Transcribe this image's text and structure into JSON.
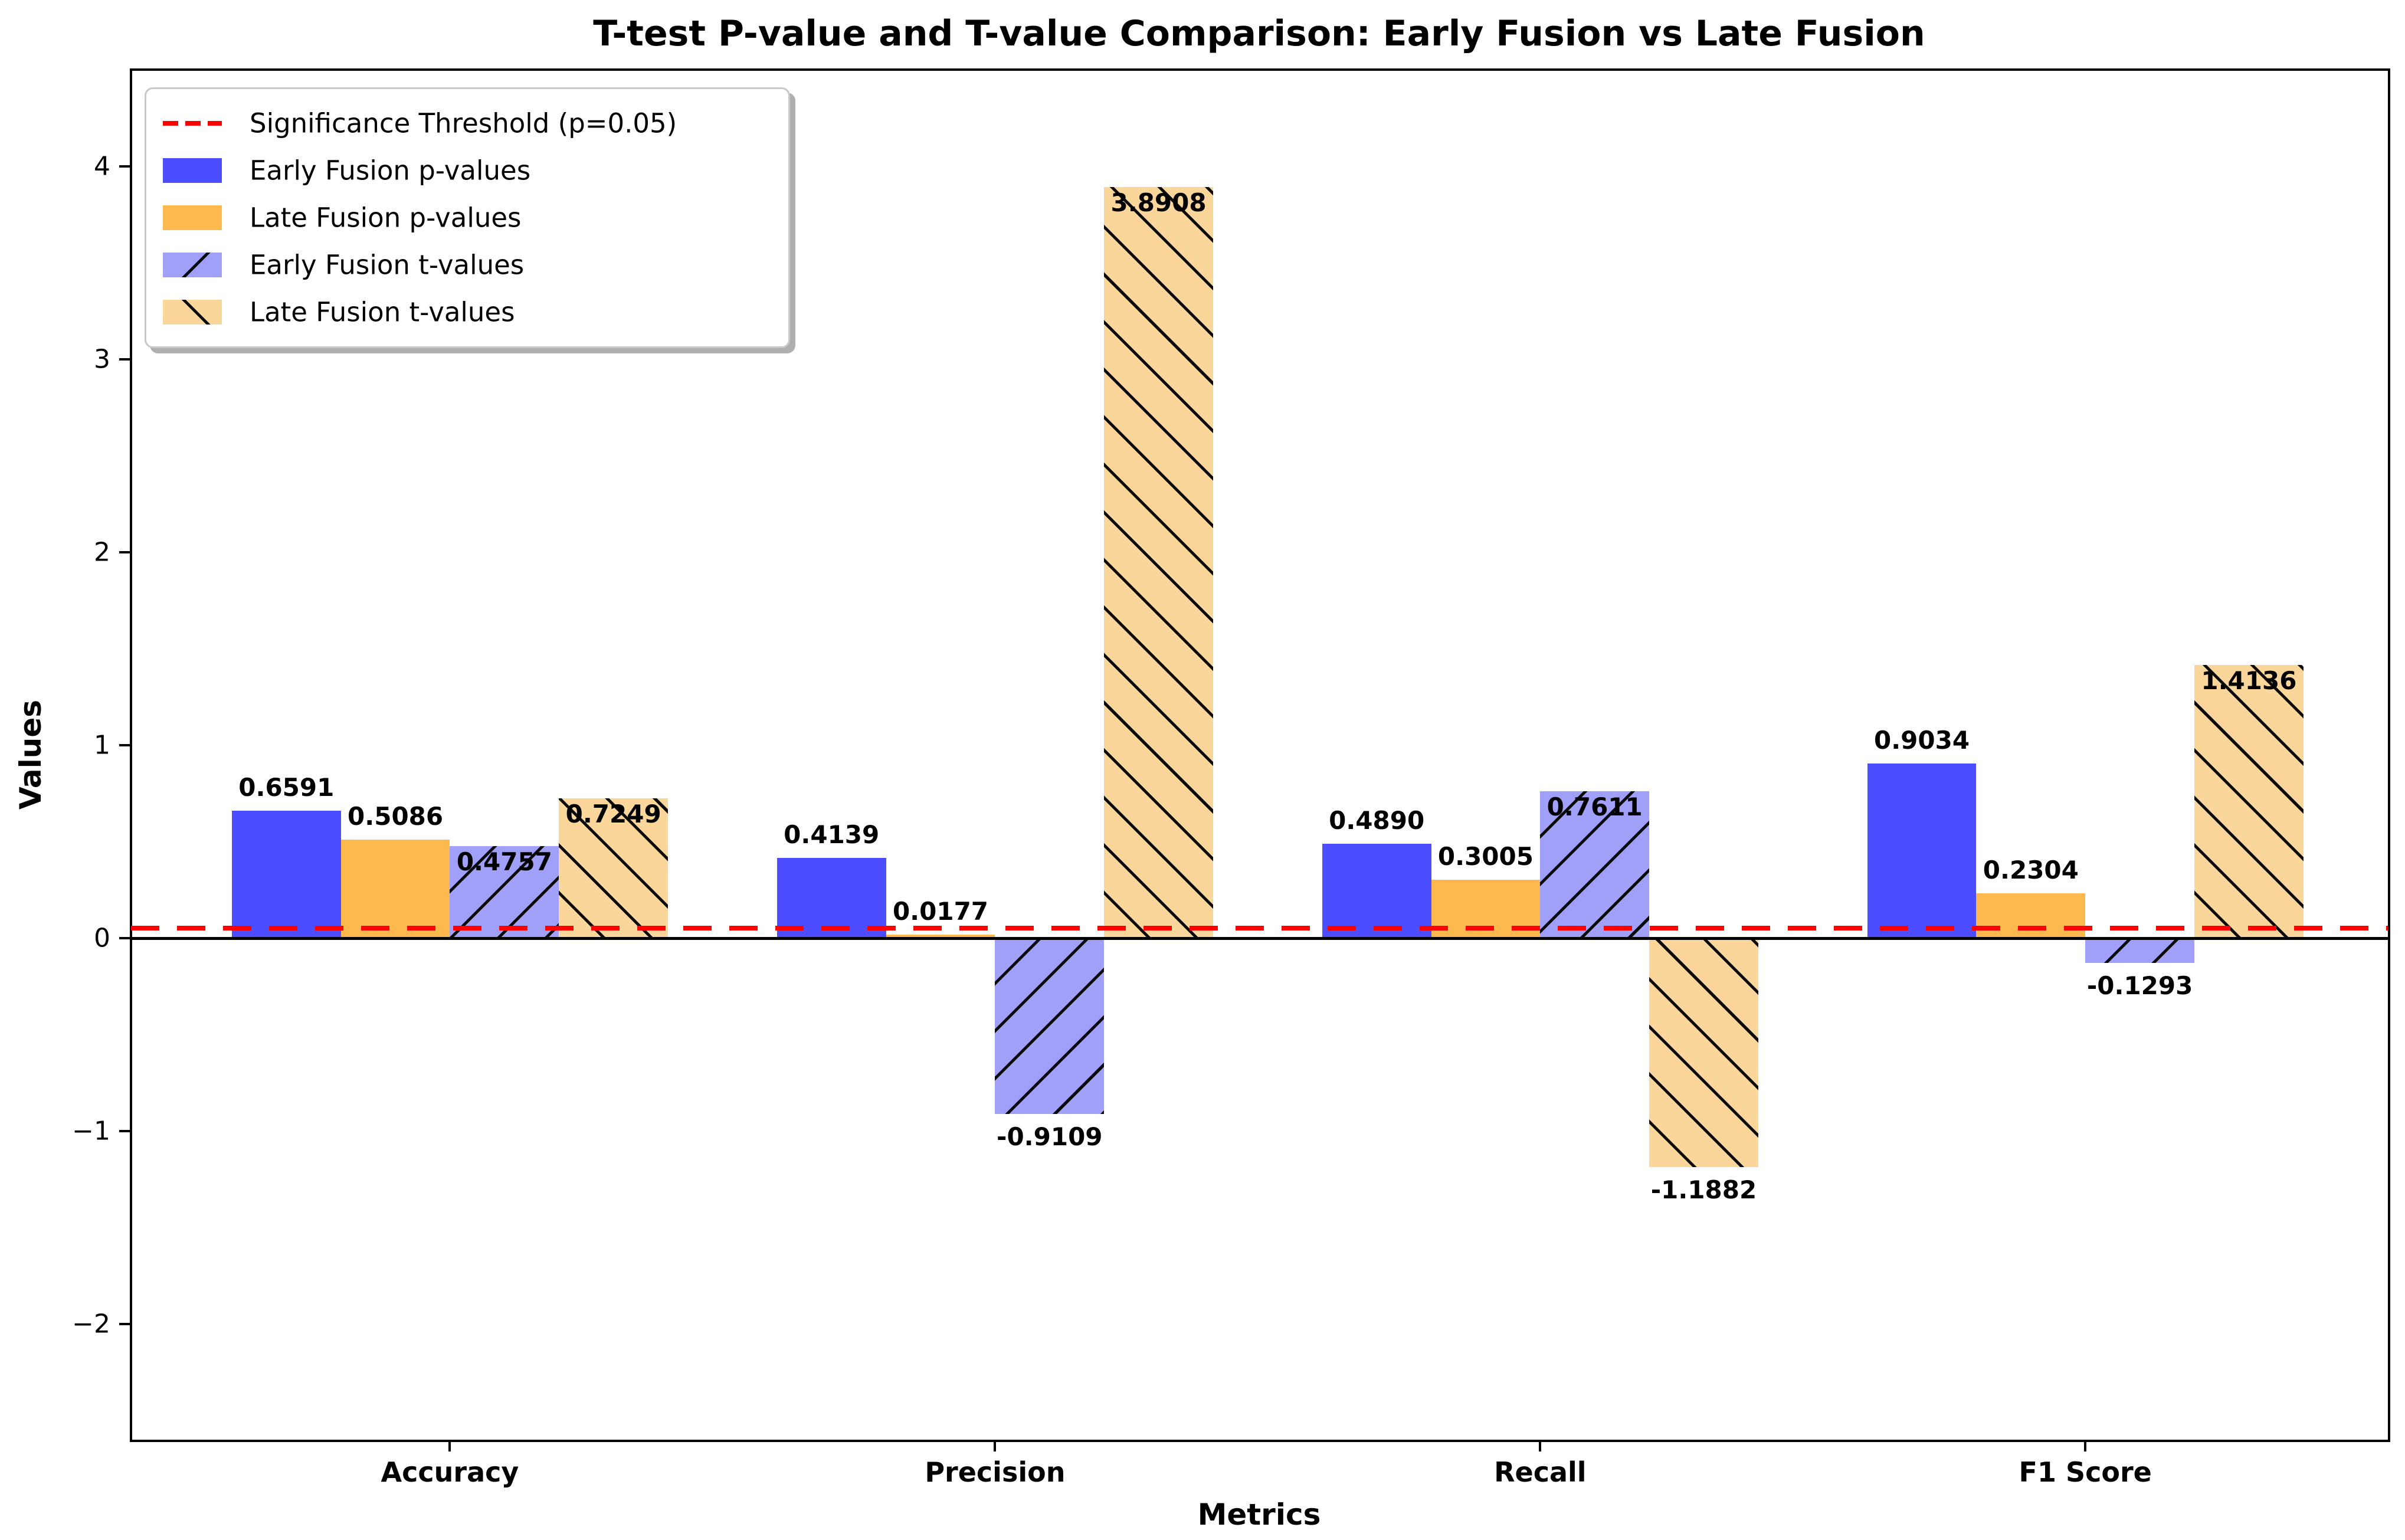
{
  "title": "T-test P-value and T-value Comparison: Early Fusion vs Late Fusion",
  "chart_data": {
    "type": "bar",
    "title": "T-test P-value and T-value Comparison: Early Fusion vs Late Fusion",
    "xlabel": "Metrics",
    "ylabel": "Values",
    "categories": [
      "Accuracy",
      "Precision",
      "Recall",
      "F1 Score"
    ],
    "series": [
      {
        "name": "Early Fusion p-values",
        "kind": "p",
        "color": "#4c4dfe",
        "hatch": null,
        "values": [
          0.6591,
          0.4139,
          0.489,
          0.9034
        ],
        "labels": [
          "0.6591",
          "0.4139",
          "0.4890",
          "0.9034"
        ]
      },
      {
        "name": "Late Fusion p-values",
        "kind": "p",
        "color": "#fdb84e",
        "hatch": null,
        "values": [
          0.5086,
          0.0177,
          0.3005,
          0.2304
        ],
        "labels": [
          "0.5086",
          "0.0177",
          "0.3005",
          "0.2304"
        ]
      },
      {
        "name": "Early Fusion t-values",
        "kind": "t",
        "color": "#a0a0f8",
        "hatch": "/",
        "values": [
          0.4757,
          -0.9109,
          0.7611,
          -0.1293
        ],
        "labels": [
          "0.4757",
          "-0.9109",
          "0.7611",
          "-0.1293"
        ]
      },
      {
        "name": "Late Fusion t-values",
        "kind": "t",
        "color": "#fad69b",
        "hatch": "\\",
        "values": [
          0.7249,
          3.8908,
          -1.1882,
          1.4136
        ],
        "labels": [
          "0.7249",
          "3.8908",
          "-1.1882",
          "1.4136"
        ]
      }
    ],
    "threshold": {
      "label": "Significance Threshold (p=0.05)",
      "value": 0.05,
      "color": "#ff0000",
      "style": "dashed"
    },
    "yticks": [
      {
        "value": -2,
        "label": "−2"
      },
      {
        "value": -1,
        "label": "−1"
      },
      {
        "value": 0,
        "label": "0"
      },
      {
        "value": 1,
        "label": "1"
      },
      {
        "value": 2,
        "label": "2"
      },
      {
        "value": 3,
        "label": "3"
      },
      {
        "value": 4,
        "label": "4"
      }
    ],
    "ylim": [
      -2.6,
      4.5
    ],
    "bar_width": 0.2,
    "group_offsets": [
      -0.3,
      -0.1,
      0.1,
      0.3
    ],
    "grid": false,
    "legend_position": "upper left",
    "hatch_color": "#000000"
  }
}
